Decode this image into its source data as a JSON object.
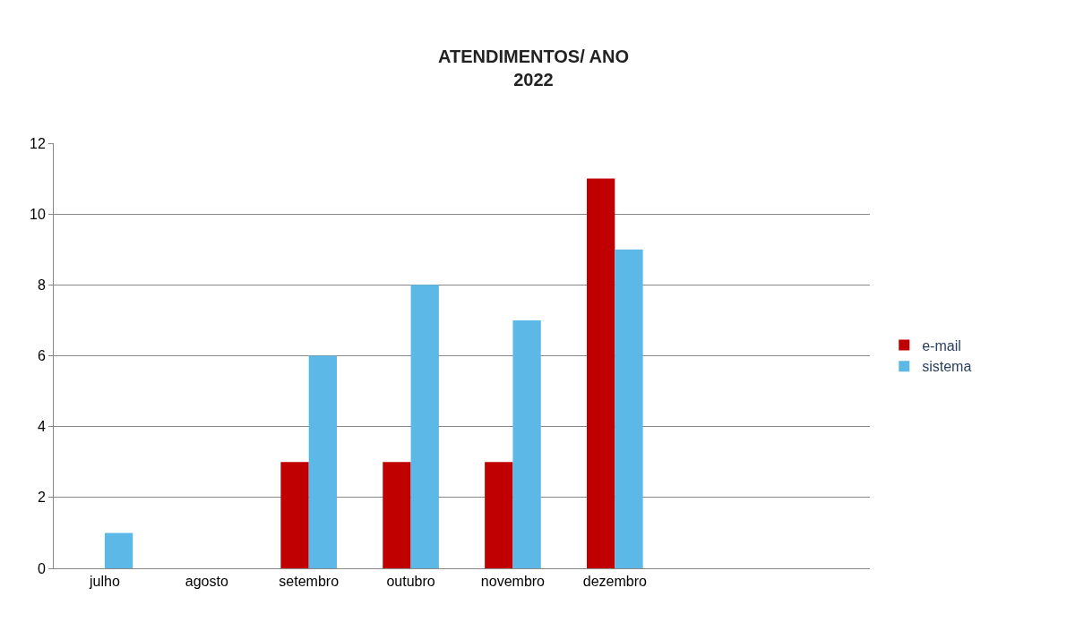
{
  "chart_data": {
    "type": "bar",
    "title": "ATENDIMENTOS/ ANO\n2022",
    "categories": [
      "julho",
      "agosto",
      "setembro",
      "outubro",
      "novembro",
      "dezembro",
      null,
      null
    ],
    "series": [
      {
        "name": "e-mail",
        "color": "#c00000",
        "values": [
          null,
          null,
          3,
          3,
          3,
          11,
          null,
          null
        ]
      },
      {
        "name": "sistema",
        "color": "#5cb8e6",
        "values": [
          1,
          null,
          6,
          8,
          7,
          9,
          null,
          null
        ]
      }
    ],
    "ylim": [
      0,
      12
    ],
    "yticks": [
      0,
      2,
      4,
      6,
      8,
      10,
      12
    ],
    "grid": "y",
    "legend": "right"
  }
}
